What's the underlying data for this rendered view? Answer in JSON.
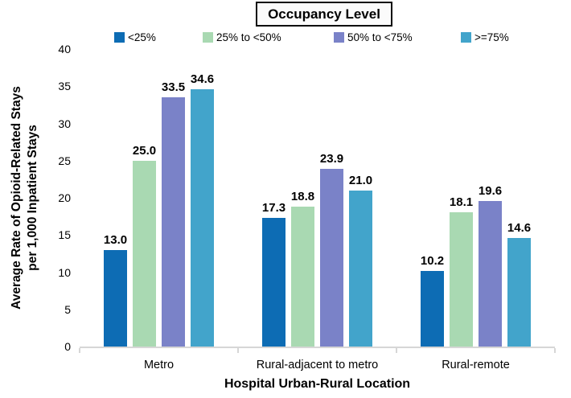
{
  "chart_data": {
    "type": "bar",
    "legend_title": "Occupancy Level",
    "legend_position": "top",
    "grid": false,
    "categories": [
      "Metro",
      "Rural-adjacent to metro",
      "Rural-remote"
    ],
    "series": [
      {
        "name": "<25%",
        "color": "#0d6cb4",
        "values": [
          13.0,
          17.3,
          10.2
        ]
      },
      {
        "name": "25% to <50%",
        "color": "#a9d9b2",
        "values": [
          25.0,
          18.8,
          18.1
        ]
      },
      {
        "name": "50% to <75%",
        "color": "#7a82c8",
        "values": [
          33.5,
          23.9,
          19.6
        ]
      },
      {
        "name": ">=75%",
        "color": "#42a4cb",
        "values": [
          34.6,
          21.0,
          14.6
        ]
      }
    ],
    "xlabel": "Hospital Urban-Rural Location",
    "ylabel_line1": "Average Rate of Opioid-Related Stays",
    "ylabel_line2": "per 1,000 Inpatient Stays",
    "ylim": [
      0,
      40
    ],
    "yticks": [
      0,
      5,
      10,
      15,
      20,
      25,
      30,
      35,
      40
    ],
    "colors": {
      "axis_line": "#d6d6d6",
      "text": "#000000",
      "background": "#ffffff"
    }
  }
}
